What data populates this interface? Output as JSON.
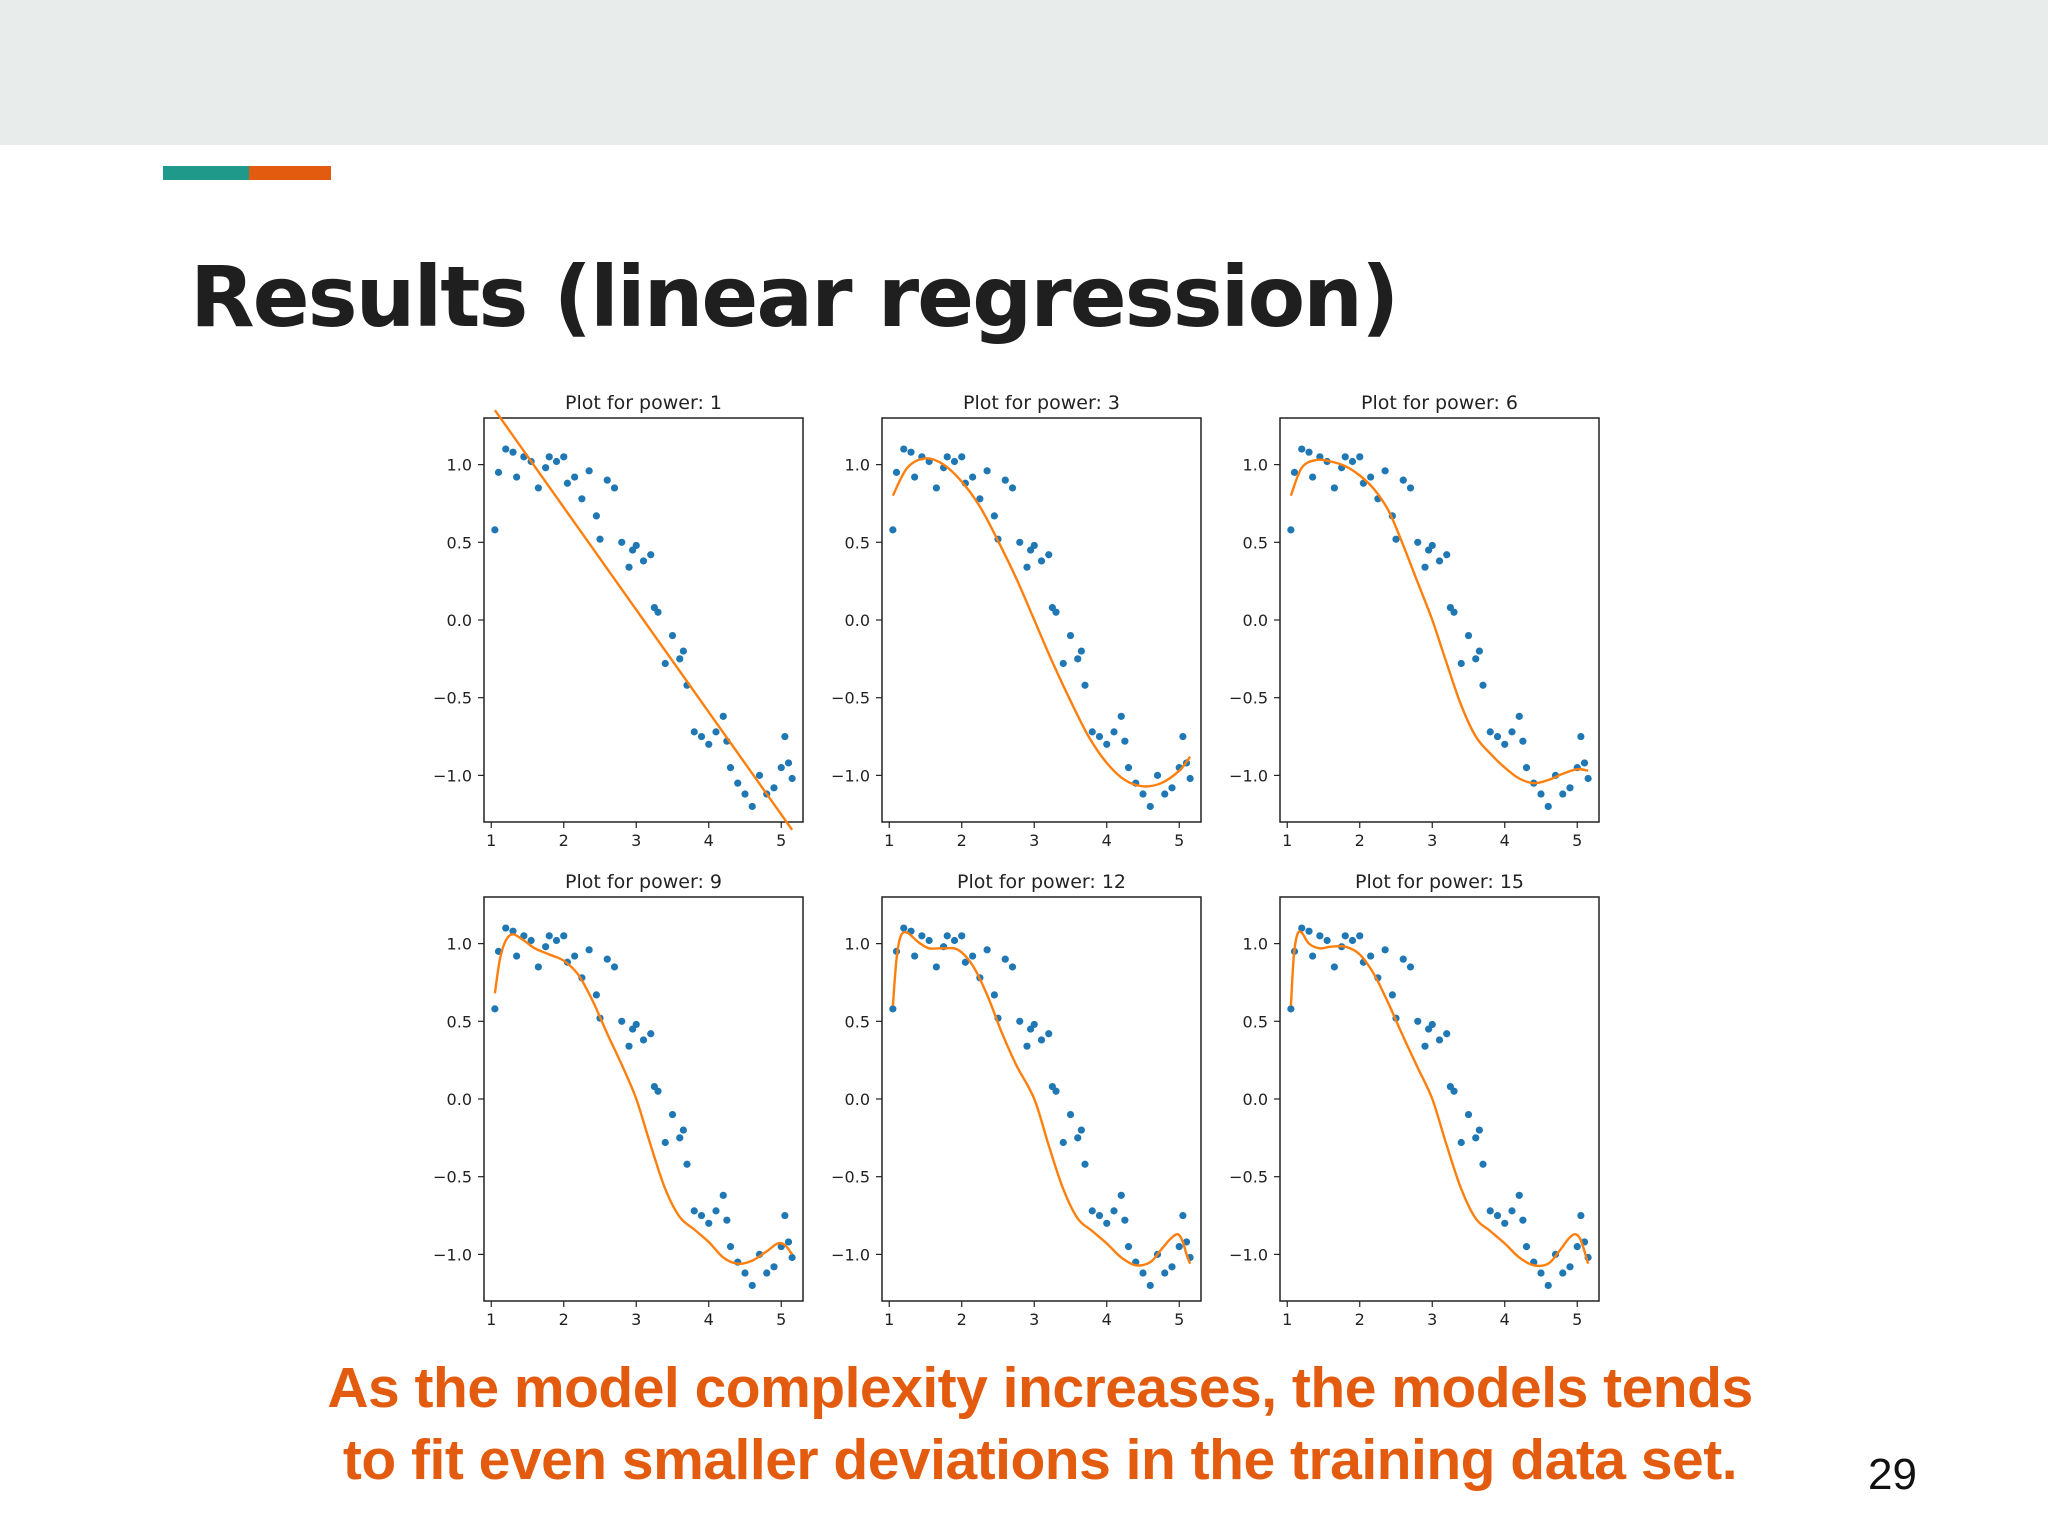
{
  "slide": {
    "title": "Results (linear regression)",
    "caption_lines": [
      "As the model complexity increases, the models tends",
      "to fit even smaller deviations in the training data set."
    ],
    "page_number": "29",
    "colors": {
      "band": "#e8edeb",
      "accent_teal": "#1f9a8a",
      "accent_orange": "#e35b0e",
      "caption": "#e35b0e",
      "points": "#1f77b4",
      "fit_line": "#ff7f0e"
    }
  },
  "chart_data": [
    {
      "type": "scatter",
      "title": "Plot for power: 1",
      "xlim": [
        0.9,
        5.3
      ],
      "ylim": [
        -1.3,
        1.3
      ],
      "xticks": [
        1,
        2,
        3,
        4,
        5
      ],
      "yticks": [
        -1.0,
        -0.5,
        0.0,
        0.5,
        1.0
      ],
      "ytick_labels": [
        "−1.0",
        "−0.5",
        "0.0",
        "0.5",
        "1.0"
      ],
      "grid": false,
      "series": [
        {
          "kind": "points",
          "x": [
            1.05,
            1.1,
            1.2,
            1.3,
            1.35,
            1.45,
            1.55,
            1.65,
            1.75,
            1.8,
            1.9,
            2.0,
            2.05,
            2.15,
            2.25,
            2.35,
            2.45,
            2.5,
            2.6,
            2.7,
            2.8,
            2.9,
            2.95,
            3.0,
            3.1,
            3.2,
            3.25,
            3.3,
            3.4,
            3.5,
            3.6,
            3.65,
            3.7,
            3.8,
            3.9,
            4.0,
            4.1,
            4.2,
            4.25,
            4.3,
            4.4,
            4.5,
            4.6,
            4.7,
            4.8,
            4.9,
            5.0,
            5.05,
            5.1,
            5.15
          ],
          "y": [
            0.58,
            0.95,
            1.1,
            1.08,
            0.92,
            1.05,
            1.02,
            0.85,
            0.98,
            1.05,
            1.02,
            1.05,
            0.88,
            0.92,
            0.78,
            0.96,
            0.67,
            0.52,
            0.9,
            0.85,
            0.5,
            0.34,
            0.45,
            0.48,
            0.38,
            0.42,
            0.08,
            0.05,
            -0.28,
            -0.1,
            -0.25,
            -0.2,
            -0.42,
            -0.72,
            -0.75,
            -0.8,
            -0.72,
            -0.62,
            -0.78,
            -0.95,
            -1.05,
            -1.12,
            -1.2,
            -1.0,
            -1.12,
            -1.08,
            -0.95,
            -0.75,
            -0.92,
            -1.02
          ]
        },
        {
          "kind": "line",
          "x": [
            1.05,
            5.15
          ],
          "y": [
            1.35,
            -1.35
          ]
        }
      ]
    },
    {
      "type": "scatter",
      "title": "Plot for power: 3",
      "xlim": [
        0.9,
        5.3
      ],
      "ylim": [
        -1.3,
        1.3
      ],
      "xticks": [
        1,
        2,
        3,
        4,
        5
      ],
      "yticks": [
        -1.0,
        -0.5,
        0.0,
        0.5,
        1.0
      ],
      "ytick_labels": [
        "−1.0",
        "−0.5",
        "0.0",
        "0.5",
        "1.0"
      ],
      "grid": false,
      "series": [
        {
          "kind": "points",
          "x": [
            1.05,
            1.1,
            1.2,
            1.3,
            1.35,
            1.45,
            1.55,
            1.65,
            1.75,
            1.8,
            1.9,
            2.0,
            2.05,
            2.15,
            2.25,
            2.35,
            2.45,
            2.5,
            2.6,
            2.7,
            2.8,
            2.9,
            2.95,
            3.0,
            3.1,
            3.2,
            3.25,
            3.3,
            3.4,
            3.5,
            3.6,
            3.65,
            3.7,
            3.8,
            3.9,
            4.0,
            4.1,
            4.2,
            4.25,
            4.3,
            4.4,
            4.5,
            4.6,
            4.7,
            4.8,
            4.9,
            5.0,
            5.05,
            5.1,
            5.15
          ],
          "y": [
            0.58,
            0.95,
            1.1,
            1.08,
            0.92,
            1.05,
            1.02,
            0.85,
            0.98,
            1.05,
            1.02,
            1.05,
            0.88,
            0.92,
            0.78,
            0.96,
            0.67,
            0.52,
            0.9,
            0.85,
            0.5,
            0.34,
            0.45,
            0.48,
            0.38,
            0.42,
            0.08,
            0.05,
            -0.28,
            -0.1,
            -0.25,
            -0.2,
            -0.42,
            -0.72,
            -0.75,
            -0.8,
            -0.72,
            -0.62,
            -0.78,
            -0.95,
            -1.05,
            -1.12,
            -1.2,
            -1.0,
            -1.12,
            -1.08,
            -0.95,
            -0.75,
            -0.92,
            -1.02
          ]
        },
        {
          "kind": "line",
          "x": [
            1.05,
            1.25,
            1.5,
            1.75,
            2.0,
            2.25,
            2.5,
            2.75,
            3.0,
            3.25,
            3.5,
            3.75,
            4.0,
            4.25,
            4.5,
            4.75,
            5.0,
            5.15
          ],
          "y": [
            0.8,
            0.98,
            1.04,
            1.0,
            0.89,
            0.73,
            0.51,
            0.27,
            0.0,
            -0.27,
            -0.52,
            -0.75,
            -0.92,
            -1.03,
            -1.07,
            -1.05,
            -0.97,
            -0.88
          ]
        }
      ]
    },
    {
      "type": "scatter",
      "title": "Plot for power: 6",
      "xlim": [
        0.9,
        5.3
      ],
      "ylim": [
        -1.3,
        1.3
      ],
      "xticks": [
        1,
        2,
        3,
        4,
        5
      ],
      "yticks": [
        -1.0,
        -0.5,
        0.0,
        0.5,
        1.0
      ],
      "ytick_labels": [
        "−1.0",
        "−0.5",
        "0.0",
        "0.5",
        "1.0"
      ],
      "grid": false,
      "series": [
        {
          "kind": "points",
          "x": [
            1.05,
            1.1,
            1.2,
            1.3,
            1.35,
            1.45,
            1.55,
            1.65,
            1.75,
            1.8,
            1.9,
            2.0,
            2.05,
            2.15,
            2.25,
            2.35,
            2.45,
            2.5,
            2.6,
            2.7,
            2.8,
            2.9,
            2.95,
            3.0,
            3.1,
            3.2,
            3.25,
            3.3,
            3.4,
            3.5,
            3.6,
            3.65,
            3.7,
            3.8,
            3.9,
            4.0,
            4.1,
            4.2,
            4.25,
            4.3,
            4.4,
            4.5,
            4.6,
            4.7,
            4.8,
            4.9,
            5.0,
            5.05,
            5.1,
            5.15
          ],
          "y": [
            0.58,
            0.95,
            1.1,
            1.08,
            0.92,
            1.05,
            1.02,
            0.85,
            0.98,
            1.05,
            1.02,
            1.05,
            0.88,
            0.92,
            0.78,
            0.96,
            0.67,
            0.52,
            0.9,
            0.85,
            0.5,
            0.34,
            0.45,
            0.48,
            0.38,
            0.42,
            0.08,
            0.05,
            -0.28,
            -0.1,
            -0.25,
            -0.2,
            -0.42,
            -0.72,
            -0.75,
            -0.8,
            -0.72,
            -0.62,
            -0.78,
            -0.95,
            -1.05,
            -1.12,
            -1.2,
            -1.0,
            -1.12,
            -1.08,
            -0.95,
            -0.75,
            -0.92,
            -1.02
          ]
        },
        {
          "kind": "line",
          "x": [
            1.05,
            1.2,
            1.4,
            1.6,
            1.8,
            2.0,
            2.2,
            2.4,
            2.6,
            2.8,
            3.0,
            3.2,
            3.4,
            3.6,
            3.8,
            4.0,
            4.2,
            4.4,
            4.6,
            4.8,
            5.0,
            5.15
          ],
          "y": [
            0.8,
            0.98,
            1.03,
            1.02,
            0.99,
            0.93,
            0.84,
            0.7,
            0.48,
            0.24,
            0.0,
            -0.28,
            -0.55,
            -0.75,
            -0.86,
            -0.95,
            -1.02,
            -1.05,
            -1.03,
            -0.99,
            -0.96,
            -0.97
          ]
        }
      ]
    },
    {
      "type": "scatter",
      "title": "Plot for power: 9",
      "xlim": [
        0.9,
        5.3
      ],
      "ylim": [
        -1.3,
        1.3
      ],
      "xticks": [
        1,
        2,
        3,
        4,
        5
      ],
      "yticks": [
        -1.0,
        -0.5,
        0.0,
        0.5,
        1.0
      ],
      "ytick_labels": [
        "−1.0",
        "−0.5",
        "0.0",
        "0.5",
        "1.0"
      ],
      "grid": false,
      "series": [
        {
          "kind": "points",
          "x": [
            1.05,
            1.1,
            1.2,
            1.3,
            1.35,
            1.45,
            1.55,
            1.65,
            1.75,
            1.8,
            1.9,
            2.0,
            2.05,
            2.15,
            2.25,
            2.35,
            2.45,
            2.5,
            2.6,
            2.7,
            2.8,
            2.9,
            2.95,
            3.0,
            3.1,
            3.2,
            3.25,
            3.3,
            3.4,
            3.5,
            3.6,
            3.65,
            3.7,
            3.8,
            3.9,
            4.0,
            4.1,
            4.2,
            4.25,
            4.3,
            4.4,
            4.5,
            4.6,
            4.7,
            4.8,
            4.9,
            5.0,
            5.05,
            5.1,
            5.15
          ],
          "y": [
            0.58,
            0.95,
            1.1,
            1.08,
            0.92,
            1.05,
            1.02,
            0.85,
            0.98,
            1.05,
            1.02,
            1.05,
            0.88,
            0.92,
            0.78,
            0.96,
            0.67,
            0.52,
            0.9,
            0.85,
            0.5,
            0.34,
            0.45,
            0.48,
            0.38,
            0.42,
            0.08,
            0.05,
            -0.28,
            -0.1,
            -0.25,
            -0.2,
            -0.42,
            -0.72,
            -0.75,
            -0.8,
            -0.72,
            -0.62,
            -0.78,
            -0.95,
            -1.05,
            -1.12,
            -1.2,
            -1.0,
            -1.12,
            -1.08,
            -0.95,
            -0.75,
            -0.92,
            -1.02
          ]
        },
        {
          "kind": "line",
          "x": [
            1.05,
            1.12,
            1.2,
            1.3,
            1.45,
            1.6,
            1.8,
            2.0,
            2.2,
            2.4,
            2.6,
            2.8,
            3.0,
            3.2,
            3.4,
            3.6,
            3.8,
            4.0,
            4.2,
            4.4,
            4.6,
            4.8,
            4.95,
            5.05,
            5.15
          ],
          "y": [
            0.68,
            0.9,
            1.02,
            1.06,
            1.02,
            0.97,
            0.93,
            0.89,
            0.8,
            0.63,
            0.42,
            0.22,
            0.0,
            -0.3,
            -0.58,
            -0.76,
            -0.84,
            -0.92,
            -1.02,
            -1.06,
            -1.04,
            -0.98,
            -0.93,
            -0.94,
            -1.0
          ]
        }
      ]
    },
    {
      "type": "scatter",
      "title": "Plot for power: 12",
      "xlim": [
        0.9,
        5.3
      ],
      "ylim": [
        -1.3,
        1.3
      ],
      "xticks": [
        1,
        2,
        3,
        4,
        5
      ],
      "yticks": [
        -1.0,
        -0.5,
        0.0,
        0.5,
        1.0
      ],
      "ytick_labels": [
        "−1.0",
        "−0.5",
        "0.0",
        "0.5",
        "1.0"
      ],
      "grid": false,
      "series": [
        {
          "kind": "points",
          "x": [
            1.05,
            1.1,
            1.2,
            1.3,
            1.35,
            1.45,
            1.55,
            1.65,
            1.75,
            1.8,
            1.9,
            2.0,
            2.05,
            2.15,
            2.25,
            2.35,
            2.45,
            2.5,
            2.6,
            2.7,
            2.8,
            2.9,
            2.95,
            3.0,
            3.1,
            3.2,
            3.25,
            3.3,
            3.4,
            3.5,
            3.6,
            3.65,
            3.7,
            3.8,
            3.9,
            4.0,
            4.1,
            4.2,
            4.25,
            4.3,
            4.4,
            4.5,
            4.6,
            4.7,
            4.8,
            4.9,
            5.0,
            5.05,
            5.1,
            5.15
          ],
          "y": [
            0.58,
            0.95,
            1.1,
            1.08,
            0.92,
            1.05,
            1.02,
            0.85,
            0.98,
            1.05,
            1.02,
            1.05,
            0.88,
            0.92,
            0.78,
            0.96,
            0.67,
            0.52,
            0.9,
            0.85,
            0.5,
            0.34,
            0.45,
            0.48,
            0.38,
            0.42,
            0.08,
            0.05,
            -0.28,
            -0.1,
            -0.25,
            -0.2,
            -0.42,
            -0.72,
            -0.75,
            -0.8,
            -0.72,
            -0.62,
            -0.78,
            -0.95,
            -1.05,
            -1.12,
            -1.2,
            -1.0,
            -1.12,
            -1.08,
            -0.95,
            -0.75,
            -0.92,
            -1.02
          ]
        },
        {
          "kind": "line",
          "x": [
            1.05,
            1.1,
            1.16,
            1.25,
            1.4,
            1.55,
            1.75,
            1.95,
            2.15,
            2.35,
            2.55,
            2.75,
            3.0,
            3.2,
            3.4,
            3.6,
            3.8,
            4.0,
            4.2,
            4.4,
            4.6,
            4.75,
            4.88,
            4.98,
            5.05,
            5.1,
            5.15
          ],
          "y": [
            0.6,
            0.9,
            1.05,
            1.07,
            1.01,
            0.97,
            0.97,
            0.96,
            0.86,
            0.67,
            0.43,
            0.22,
            0.0,
            -0.3,
            -0.58,
            -0.77,
            -0.85,
            -0.93,
            -1.02,
            -1.07,
            -1.05,
            -0.97,
            -0.9,
            -0.87,
            -0.92,
            -1.0,
            -1.06
          ]
        }
      ]
    },
    {
      "type": "scatter",
      "title": "Plot for power: 15",
      "xlim": [
        0.9,
        5.3
      ],
      "ylim": [
        -1.3,
        1.3
      ],
      "xticks": [
        1,
        2,
        3,
        4,
        5
      ],
      "yticks": [
        -1.0,
        -0.5,
        0.0,
        0.5,
        1.0
      ],
      "ytick_labels": [
        "−1.0",
        "−0.5",
        "0.0",
        "0.5",
        "1.0"
      ],
      "grid": false,
      "series": [
        {
          "kind": "points",
          "x": [
            1.05,
            1.1,
            1.2,
            1.3,
            1.35,
            1.45,
            1.55,
            1.65,
            1.75,
            1.8,
            1.9,
            2.0,
            2.05,
            2.15,
            2.25,
            2.35,
            2.45,
            2.5,
            2.6,
            2.7,
            2.8,
            2.9,
            2.95,
            3.0,
            3.1,
            3.2,
            3.25,
            3.3,
            3.4,
            3.5,
            3.6,
            3.65,
            3.7,
            3.8,
            3.9,
            4.0,
            4.1,
            4.2,
            4.25,
            4.3,
            4.4,
            4.5,
            4.6,
            4.7,
            4.8,
            4.9,
            5.0,
            5.05,
            5.1,
            5.15
          ],
          "y": [
            0.58,
            0.95,
            1.1,
            1.08,
            0.92,
            1.05,
            1.02,
            0.85,
            0.98,
            1.05,
            1.02,
            1.05,
            0.88,
            0.92,
            0.78,
            0.96,
            0.67,
            0.52,
            0.9,
            0.85,
            0.5,
            0.34,
            0.45,
            0.48,
            0.38,
            0.42,
            0.08,
            0.05,
            -0.28,
            -0.1,
            -0.25,
            -0.2,
            -0.42,
            -0.72,
            -0.75,
            -0.8,
            -0.72,
            -0.62,
            -0.78,
            -0.95,
            -1.05,
            -1.12,
            -1.2,
            -1.0,
            -1.12,
            -1.08,
            -0.95,
            -0.75,
            -0.92,
            -1.02
          ]
        },
        {
          "kind": "line",
          "x": [
            1.05,
            1.09,
            1.14,
            1.2,
            1.3,
            1.45,
            1.6,
            1.8,
            2.0,
            2.2,
            2.4,
            2.6,
            2.8,
            3.0,
            3.2,
            3.4,
            3.6,
            3.8,
            4.0,
            4.2,
            4.4,
            4.6,
            4.75,
            4.88,
            4.97,
            5.04,
            5.1,
            5.15
          ],
          "y": [
            0.6,
            0.92,
            1.06,
            1.07,
            1.0,
            0.97,
            0.98,
            0.98,
            0.93,
            0.8,
            0.61,
            0.4,
            0.2,
            0.0,
            -0.3,
            -0.58,
            -0.77,
            -0.85,
            -0.93,
            -1.02,
            -1.07,
            -1.06,
            -0.98,
            -0.9,
            -0.87,
            -0.9,
            -0.98,
            -1.06
          ]
        }
      ]
    }
  ]
}
